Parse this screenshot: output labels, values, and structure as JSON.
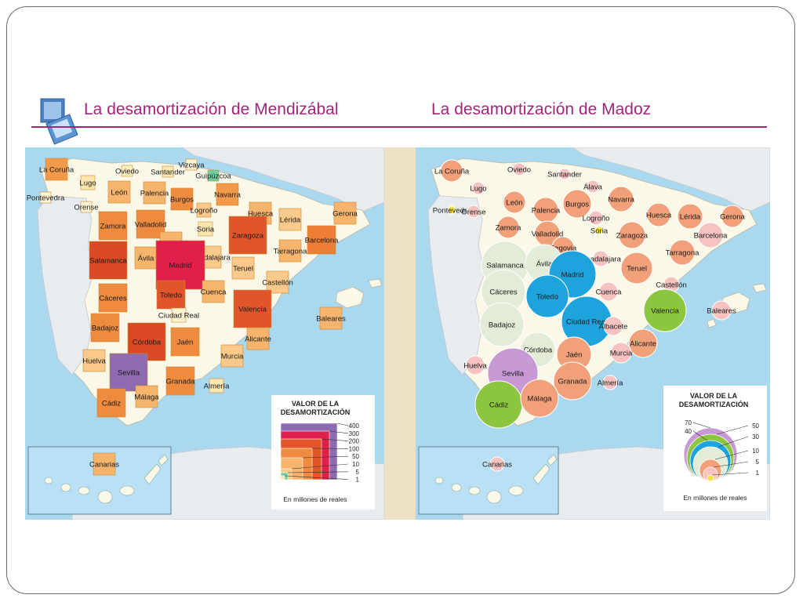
{
  "left_panel": {
    "title": "La desamortización de Mendizábal",
    "legend": {
      "title_line1": "VALOR DE LA",
      "title_line2": "DESAMORTIZACIÓN",
      "levels": [
        "400",
        "300",
        "200",
        "100",
        "50",
        "10",
        "5",
        "1"
      ],
      "caption": "En millones de reales"
    },
    "regions": [
      {
        "name": "La Coruña",
        "color": "#f29a4a",
        "size": "m"
      },
      {
        "name": "Lugo",
        "color": "#fde7b1",
        "size": "s"
      },
      {
        "name": "Pontevedra",
        "color": "#fff2d0",
        "size": "xs"
      },
      {
        "name": "Orense",
        "color": "#fff2d0",
        "size": "xs"
      },
      {
        "name": "Oviedo",
        "color": "#fff0c0",
        "size": "xs"
      },
      {
        "name": "Santander",
        "color": "#fde7b1",
        "size": "xs"
      },
      {
        "name": "Vizcaya",
        "color": "#fff2d0",
        "size": "xs"
      },
      {
        "name": "Guipúzcoa",
        "color": "#6fcfa3",
        "size": "xs"
      },
      {
        "name": "León",
        "color": "#f6b46c",
        "size": "m"
      },
      {
        "name": "Palencia",
        "color": "#f6b46c",
        "size": "m"
      },
      {
        "name": "Burgos",
        "color": "#ee8b3f",
        "size": "m"
      },
      {
        "name": "Navarra",
        "color": "#f29a4a",
        "size": "m"
      },
      {
        "name": "Logroño",
        "color": "#fbc98a",
        "size": "s"
      },
      {
        "name": "Huesca",
        "color": "#f6b46c",
        "size": "m"
      },
      {
        "name": "Lérida",
        "color": "#fbc98a",
        "size": "m"
      },
      {
        "name": "Gerona",
        "color": "#f6b46c",
        "size": "m"
      },
      {
        "name": "Zamora",
        "color": "#ee8b3f",
        "size": "l"
      },
      {
        "name": "Valladolid",
        "color": "#ee8b3f",
        "size": "l"
      },
      {
        "name": "Soria",
        "color": "#fde7b1",
        "size": "s"
      },
      {
        "name": "Zaragoza",
        "color": "#e0562a",
        "size": "xl"
      },
      {
        "name": "Barcelona",
        "color": "#ee7d35",
        "size": "l"
      },
      {
        "name": "Salamanca",
        "color": "#d94a25",
        "size": "xl"
      },
      {
        "name": "Ávila",
        "color": "#f6b46c",
        "size": "m"
      },
      {
        "name": "Segovia",
        "color": "#f6b46c",
        "size": "m"
      },
      {
        "name": "Guadalajara",
        "color": "#fbc98a",
        "size": "m"
      },
      {
        "name": "Tarragona",
        "color": "#f6b46c",
        "size": "m"
      },
      {
        "name": "Madrid",
        "color": "#e0204a",
        "size": "xxl"
      },
      {
        "name": "Teruel",
        "color": "#fbc98a",
        "size": "m"
      },
      {
        "name": "Castellón",
        "color": "#fbc98a",
        "size": "m"
      },
      {
        "name": "Toledo",
        "color": "#e0562a",
        "size": "l"
      },
      {
        "name": "Cáceres",
        "color": "#ee8b3f",
        "size": "l"
      },
      {
        "name": "Cuenca",
        "color": "#f6b46c",
        "size": "m"
      },
      {
        "name": "Valencia",
        "color": "#e0562a",
        "size": "xl"
      },
      {
        "name": "Ciudad Real",
        "color": "#fff2d0",
        "size": "s"
      },
      {
        "name": "Baleares",
        "color": "#f6b46c",
        "size": "m"
      },
      {
        "name": "Badajoz",
        "color": "#ee8b3f",
        "size": "l"
      },
      {
        "name": "Córdoba",
        "color": "#d94a25",
        "size": "xl"
      },
      {
        "name": "Jaén",
        "color": "#ee8b3f",
        "size": "l"
      },
      {
        "name": "Alicante",
        "color": "#f6b46c",
        "size": "m"
      },
      {
        "name": "Murcia",
        "color": "#fbc98a",
        "size": "m"
      },
      {
        "name": "Huelva",
        "color": "#fbc98a",
        "size": "m"
      },
      {
        "name": "Sevilla",
        "color": "#8e6ab0",
        "size": "xl"
      },
      {
        "name": "Granada",
        "color": "#ee8b3f",
        "size": "l"
      },
      {
        "name": "Almería",
        "color": "#fde7b1",
        "size": "s"
      },
      {
        "name": "Cádiz",
        "color": "#ee8b3f",
        "size": "l"
      },
      {
        "name": "Málaga",
        "color": "#f6b46c",
        "size": "m"
      },
      {
        "name": "Canarias",
        "color": "#f6b46c",
        "size": "m"
      }
    ]
  },
  "right_panel": {
    "title": "La desamortización de Madoz",
    "legend": {
      "title_line1": "VALOR DE LA",
      "title_line2": "DESAMORTIZACIÓN",
      "levels": [
        "70",
        "50",
        "40",
        "30",
        "10",
        "5",
        "1"
      ],
      "caption": "En millones de reales"
    },
    "regions": [
      {
        "name": "La Coruña",
        "color": "#f2a07a"
      },
      {
        "name": "Lugo",
        "color": "#f6c3c0"
      },
      {
        "name": "Pontevedra",
        "color": "#f5e33a"
      },
      {
        "name": "Orense",
        "color": "#f6c3c0"
      },
      {
        "name": "Oviedo",
        "color": "#f6c3c0"
      },
      {
        "name": "Santander",
        "color": "#f6c3c0"
      },
      {
        "name": "Álava",
        "color": "#f6c3c0"
      },
      {
        "name": "León",
        "color": "#f2a07a"
      },
      {
        "name": "Palencia",
        "color": "#f2a07a"
      },
      {
        "name": "Burgos",
        "color": "#f2a07a"
      },
      {
        "name": "Navarra",
        "color": "#f2a07a"
      },
      {
        "name": "Logroño",
        "color": "#f6c3c0"
      },
      {
        "name": "Huesca",
        "color": "#f2a07a"
      },
      {
        "name": "Lérida",
        "color": "#f2a07a"
      },
      {
        "name": "Gerona",
        "color": "#f2a07a"
      },
      {
        "name": "Zamora",
        "color": "#f2a07a"
      },
      {
        "name": "Valladolid",
        "color": "#f2a07a"
      },
      {
        "name": "Soria",
        "color": "#f5e33a"
      },
      {
        "name": "Zaragoza",
        "color": "#f2a07a"
      },
      {
        "name": "Barcelona",
        "color": "#f6c3c0"
      },
      {
        "name": "Segovia",
        "color": "#f2a07a"
      },
      {
        "name": "Tarragona",
        "color": "#f2a07a"
      },
      {
        "name": "Salamanca",
        "color": "#e3ecd6"
      },
      {
        "name": "Ávila",
        "color": "#e3ecd6"
      },
      {
        "name": "Guadalajara",
        "color": "#f6c3c0"
      },
      {
        "name": "Teruel",
        "color": "#f2a07a"
      },
      {
        "name": "Madrid",
        "color": "#1ea3dc"
      },
      {
        "name": "Castellón",
        "color": "#f6c3c0"
      },
      {
        "name": "Cáceres",
        "color": "#e3ecd6"
      },
      {
        "name": "Toledo",
        "color": "#1ea3dc"
      },
      {
        "name": "Cuenca",
        "color": "#f6c3c0"
      },
      {
        "name": "Valencia",
        "color": "#8cc63f"
      },
      {
        "name": "Baleares",
        "color": "#f6c3c0"
      },
      {
        "name": "Badajoz",
        "color": "#e3ecd6"
      },
      {
        "name": "Ciudad Real",
        "color": "#1ea3dc"
      },
      {
        "name": "Albacete",
        "color": "#f6c3c0"
      },
      {
        "name": "Córdoba",
        "color": "#e3ecd6"
      },
      {
        "name": "Jaén",
        "color": "#f2a07a"
      },
      {
        "name": "Alicante",
        "color": "#f2a07a"
      },
      {
        "name": "Murcia",
        "color": "#f6c3c0"
      },
      {
        "name": "Huelva",
        "color": "#f6c3c0"
      },
      {
        "name": "Sevilla",
        "color": "#c79ad6"
      },
      {
        "name": "Granada",
        "color": "#f2a07a"
      },
      {
        "name": "Almería",
        "color": "#f6c3c0"
      },
      {
        "name": "Cádiz",
        "color": "#8cc63f"
      },
      {
        "name": "Málaga",
        "color": "#f2a07a"
      },
      {
        "name": "Canarias",
        "color": "#f6c3c0"
      }
    ]
  },
  "colors": {
    "title": "#a3247a",
    "sea": "#a9d8ef",
    "land_spain": "#fbf8e8",
    "land_neighbour": "#e9ecef",
    "divider": "#ece1c4"
  }
}
